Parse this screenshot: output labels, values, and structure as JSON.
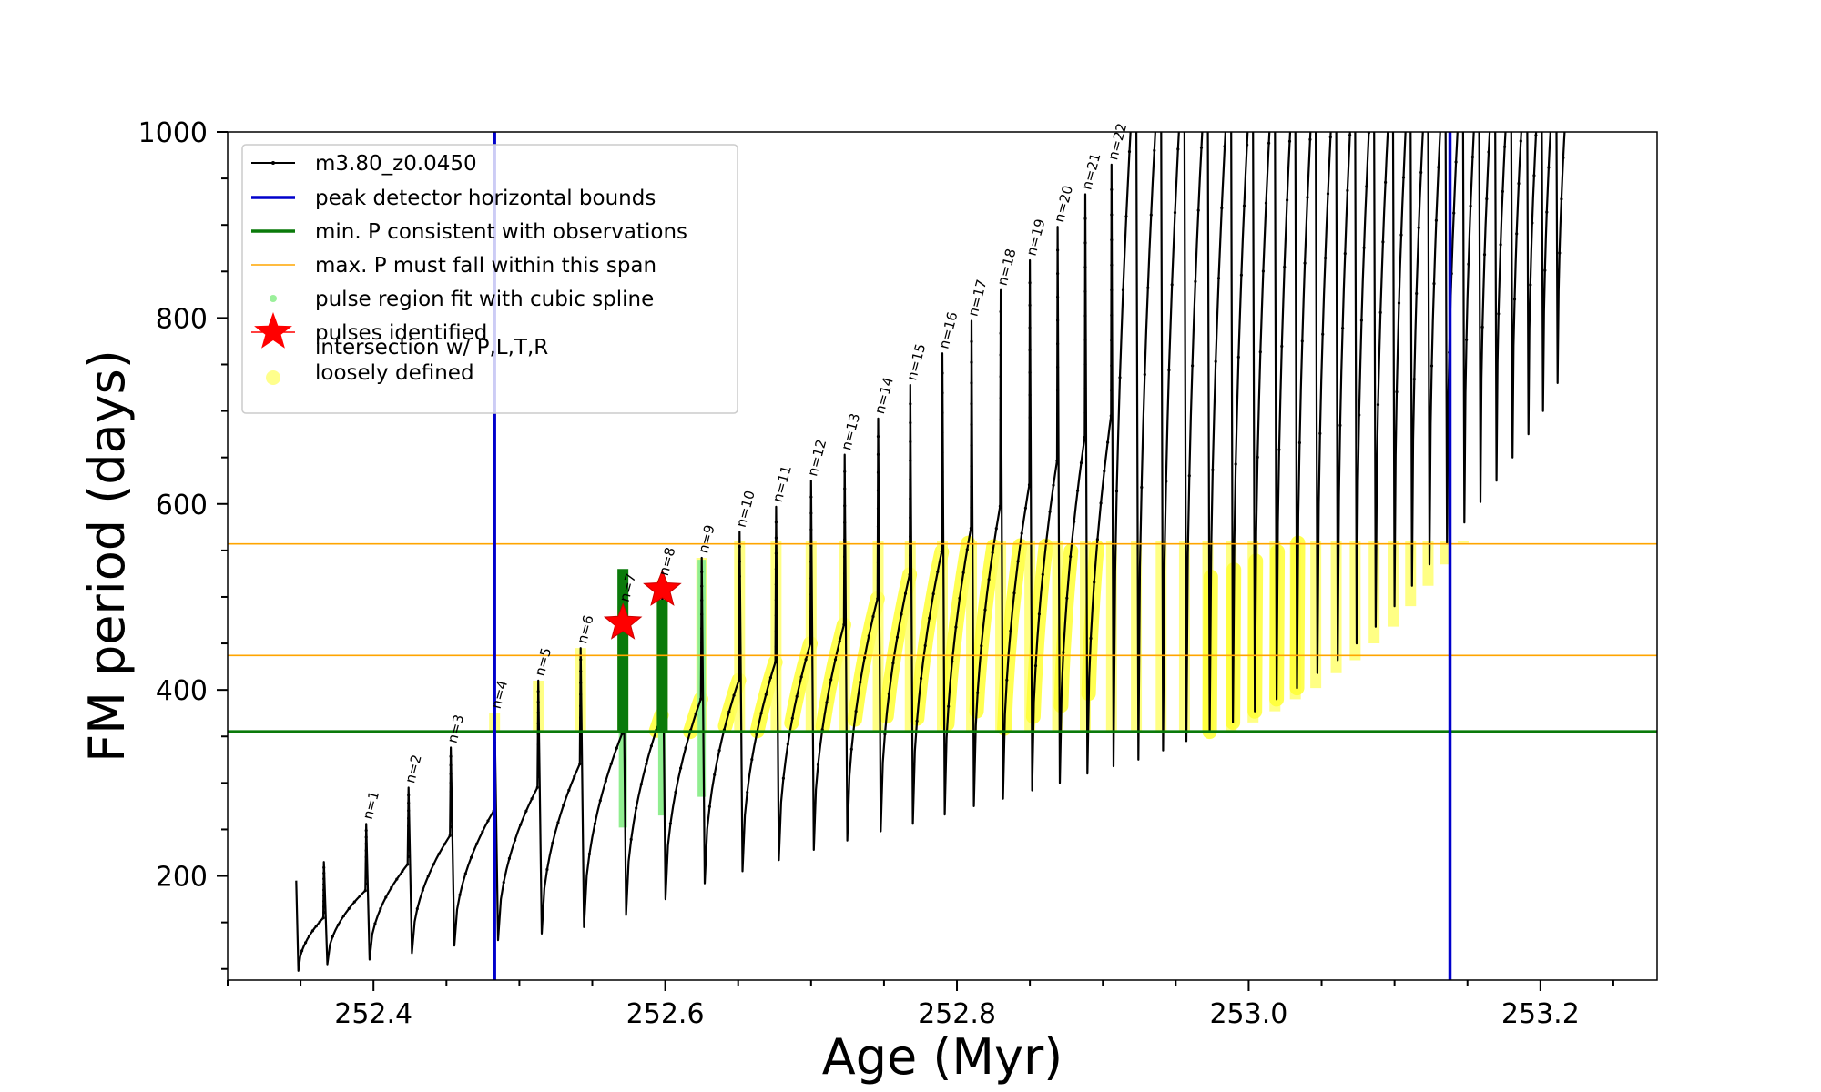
{
  "chart_data": {
    "type": "line",
    "xlabel": "Age (Myr)",
    "ylabel": "FM period (days)",
    "xlim": [
      252.3,
      253.28
    ],
    "ylim": [
      88,
      1000
    ],
    "x_ticks": [
      252.4,
      252.6,
      252.8,
      253.0,
      253.2
    ],
    "x_tick_labels": [
      "252.4",
      "252.6",
      "252.8",
      "253.0",
      "253.2"
    ],
    "y_ticks": [
      200,
      400,
      600,
      800,
      1000
    ],
    "y_tick_labels": [
      "200",
      "400",
      "600",
      "800",
      "1000"
    ],
    "legend_position": "upper-left",
    "grid": false,
    "legend": [
      {
        "label": "m3.80_z0.0450",
        "kind": "line-marker",
        "color": "#000000"
      },
      {
        "label": "peak detector horizontal bounds",
        "kind": "line",
        "color": "#0000cc"
      },
      {
        "label": "min. P consistent with observations",
        "kind": "line",
        "color": "#0a7a0a"
      },
      {
        "label": "max. P must fall within this span",
        "kind": "thin-line",
        "color": "#ffa500"
      },
      {
        "label": "pulse region fit with cubic spline",
        "kind": "dot",
        "color": "#90ee90"
      },
      {
        "label": "pulses identified",
        "kind": "star",
        "color": "#ff0000"
      },
      {
        "label": "intersection w/ P,L,T,R\nloosely defined",
        "kind": "dot",
        "color": "#ffff80"
      }
    ],
    "vlines": [
      252.483,
      253.138
    ],
    "hline_min_period": 355,
    "hlines_max_period_span": [
      437,
      557
    ],
    "pulse_series": {
      "name": "m3.80_z0.0450",
      "color": "#000000",
      "start": 252.347,
      "start_value": 195,
      "cycles": [
        {
          "n": "",
          "x": 252.366,
          "low": 98,
          "high": 215
        },
        {
          "n": "n=1",
          "x": 252.395,
          "low": 105,
          "high": 256
        },
        {
          "n": "n=2",
          "x": 252.424,
          "low": 110,
          "high": 295
        },
        {
          "n": "n=3",
          "x": 252.453,
          "low": 117,
          "high": 338
        },
        {
          "n": "n=4",
          "x": 252.483,
          "low": 125,
          "high": 375
        },
        {
          "n": "n=5",
          "x": 252.513,
          "low": 131,
          "high": 410
        },
        {
          "n": "n=6",
          "x": 252.542,
          "low": 138,
          "high": 445
        },
        {
          "n": "n=7",
          "x": 252.571,
          "low": 145,
          "high": 490
        },
        {
          "n": "n=8",
          "x": 252.598,
          "low": 158,
          "high": 518
        },
        {
          "n": "n=9",
          "x": 252.625,
          "low": 175,
          "high": 542
        },
        {
          "n": "n=10",
          "x": 252.651,
          "low": 192,
          "high": 570
        },
        {
          "n": "n=11",
          "x": 252.676,
          "low": 205,
          "high": 597
        },
        {
          "n": "n=12",
          "x": 252.7,
          "low": 217,
          "high": 625
        },
        {
          "n": "n=13",
          "x": 252.723,
          "low": 228,
          "high": 653
        },
        {
          "n": "n=14",
          "x": 252.746,
          "low": 238,
          "high": 692
        },
        {
          "n": "n=15",
          "x": 252.768,
          "low": 248,
          "high": 728
        },
        {
          "n": "n=16",
          "x": 252.79,
          "low": 256,
          "high": 762
        },
        {
          "n": "n=17",
          "x": 252.81,
          "low": 266,
          "high": 797
        },
        {
          "n": "n=18",
          "x": 252.83,
          "low": 275,
          "high": 830
        },
        {
          "n": "n=19",
          "x": 252.85,
          "low": 283,
          "high": 862
        },
        {
          "n": "n=20",
          "x": 252.869,
          "low": 292,
          "high": 898
        },
        {
          "n": "n=21",
          "x": 252.888,
          "low": 300,
          "high": 933
        },
        {
          "n": "n=22",
          "x": 252.906,
          "low": 310,
          "high": 965
        },
        {
          "n": "",
          "x": 252.923,
          "low": 318,
          "high": 1000
        },
        {
          "n": "",
          "x": 252.94,
          "low": 325,
          "high": 1000
        },
        {
          "n": "",
          "x": 252.956,
          "low": 335,
          "high": 1000
        },
        {
          "n": "",
          "x": 252.972,
          "low": 345,
          "high": 1000
        },
        {
          "n": "",
          "x": 252.988,
          "low": 355,
          "high": 1000
        },
        {
          "n": "",
          "x": 253.003,
          "low": 365,
          "high": 1000
        },
        {
          "n": "",
          "x": 253.018,
          "low": 377,
          "high": 1000
        },
        {
          "n": "",
          "x": 253.032,
          "low": 390,
          "high": 1000
        },
        {
          "n": "",
          "x": 253.046,
          "low": 402,
          "high": 1000
        },
        {
          "n": "",
          "x": 253.06,
          "low": 418,
          "high": 1000
        },
        {
          "n": "",
          "x": 253.073,
          "low": 432,
          "high": 1000
        },
        {
          "n": "",
          "x": 253.086,
          "low": 450,
          "high": 1000
        },
        {
          "n": "",
          "x": 253.099,
          "low": 468,
          "high": 1000
        },
        {
          "n": "",
          "x": 253.111,
          "low": 490,
          "high": 1000
        },
        {
          "n": "",
          "x": 253.123,
          "low": 512,
          "high": 1000
        },
        {
          "n": "",
          "x": 253.135,
          "low": 535,
          "high": 1000
        },
        {
          "n": "",
          "x": 253.147,
          "low": 558,
          "high": 1000
        },
        {
          "n": "",
          "x": 253.158,
          "low": 580,
          "high": 1000
        },
        {
          "n": "",
          "x": 253.169,
          "low": 602,
          "high": 1000
        },
        {
          "n": "",
          "x": 253.18,
          "low": 625,
          "high": 1000
        },
        {
          "n": "",
          "x": 253.191,
          "low": 650,
          "high": 1000
        },
        {
          "n": "",
          "x": 253.201,
          "low": 675,
          "high": 1000
        },
        {
          "n": "",
          "x": 253.211,
          "low": 700,
          "high": 1000
        },
        {
          "n": "",
          "x": 253.221,
          "low": 730,
          "high": 1000
        }
      ]
    },
    "pulse_regions_spline": [
      {
        "x": 252.571,
        "low": 252,
        "high": 500
      },
      {
        "x": 252.598,
        "low": 265,
        "high": 520
      },
      {
        "x": 252.625,
        "low": 285,
        "high": 540
      }
    ],
    "pulses_identified": [
      {
        "x": 252.571,
        "y": 472,
        "label": "n=7"
      },
      {
        "x": 252.598,
        "y": 508,
        "label": "n=8"
      }
    ],
    "min_consistent_pulses": [
      {
        "x": 252.571,
        "low": 355,
        "high": 530
      },
      {
        "x": 252.598,
        "low": 355,
        "high": 497
      }
    ]
  }
}
